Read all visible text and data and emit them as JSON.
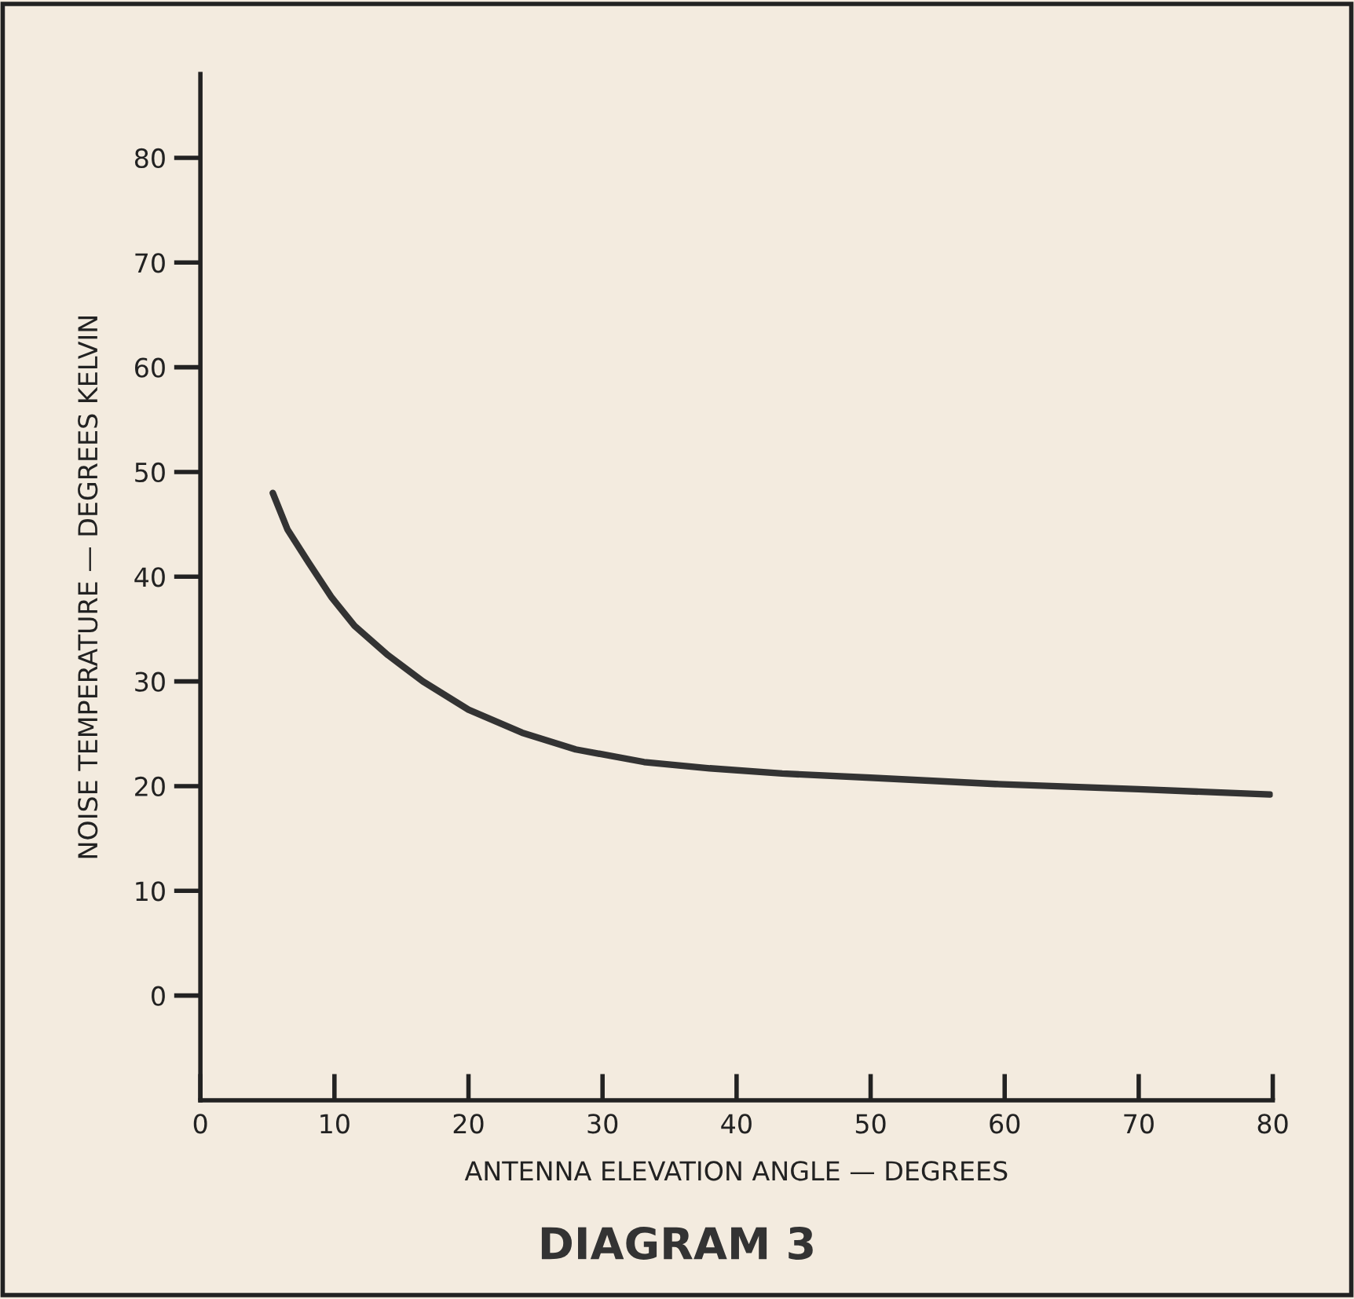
{
  "chart_data": {
    "type": "line",
    "title": "DIAGRAM 3",
    "xlabel": "ANTENNA ELEVATION ANGLE — DEGREES",
    "ylabel": "NOISE TEMPERATURE — DEGREES KELVIN",
    "series": [
      {
        "color": "#333333",
        "x": [
          5.4,
          6.5,
          8.1,
          9.8,
          11.5,
          14,
          16.6,
          20,
          24.0,
          28,
          33.1,
          38,
          43.4,
          50,
          59.3,
          70,
          79.8
        ],
        "values": [
          48.0,
          44.5,
          41.3,
          38.0,
          35.3,
          32.5,
          30.0,
          27.3,
          25.1,
          23.5,
          22.3,
          21.7,
          21.2,
          20.8,
          20.2,
          19.7,
          19.2
        ]
      }
    ],
    "xlim": [
      0,
      80
    ],
    "ylim": [
      -10,
      88
    ],
    "xticks": [
      0,
      10,
      20,
      30,
      40,
      50,
      60,
      70,
      80
    ],
    "yticks": [
      0,
      10,
      20,
      30,
      40,
      50,
      60,
      70,
      80
    ],
    "grid": false,
    "legend": false,
    "marker": "none",
    "line_style": "solid"
  }
}
